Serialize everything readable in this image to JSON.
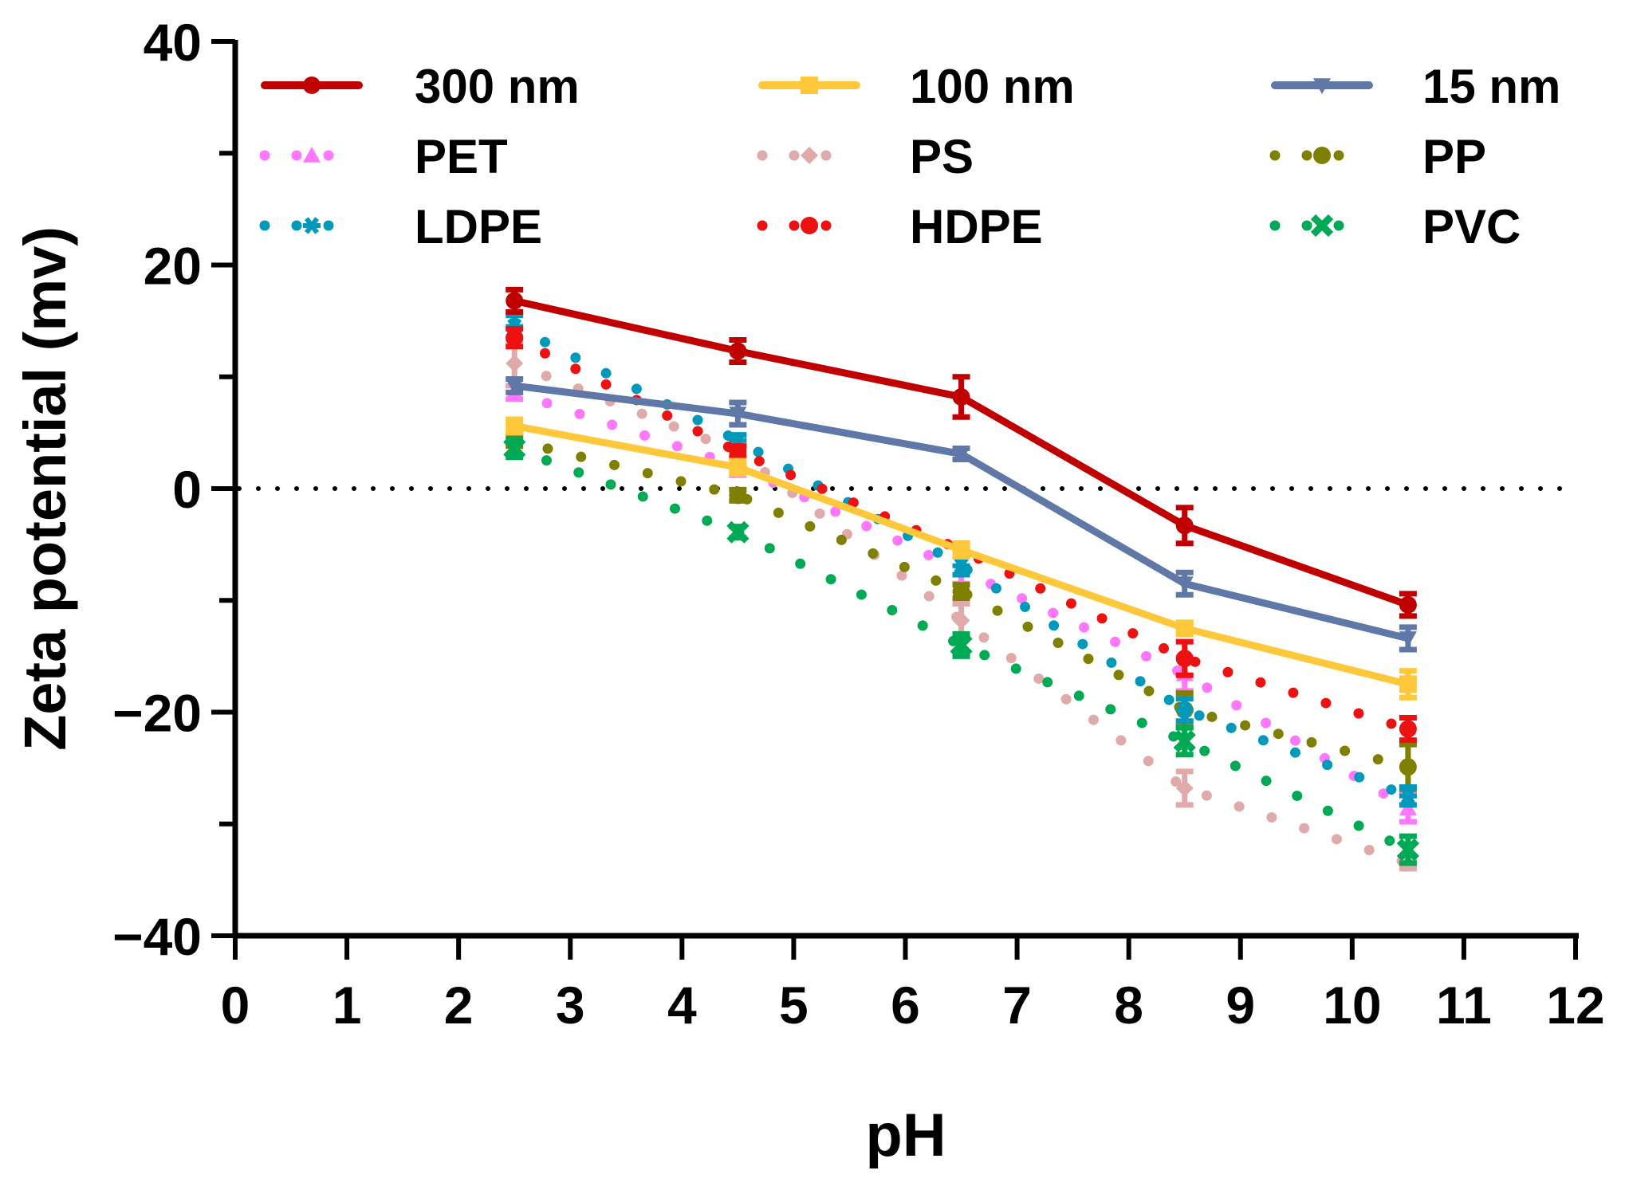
{
  "chart_data": {
    "type": "line",
    "title": "",
    "xlabel": "pH",
    "ylabel": "Zeta potential (mv)",
    "xlim": [
      0,
      12
    ],
    "ylim": [
      -40,
      40
    ],
    "xticks": [
      0,
      1,
      2,
      3,
      4,
      5,
      6,
      7,
      8,
      9,
      10,
      11,
      12
    ],
    "yticks": [
      -40,
      -20,
      0,
      20,
      40
    ],
    "xtick_labels": [
      "0",
      "1",
      "2",
      "3",
      "4",
      "5",
      "6",
      "7",
      "8",
      "9",
      "10",
      "11",
      "12"
    ],
    "ytick_labels": [
      "−40",
      "−20",
      "0",
      "20",
      "40"
    ],
    "reference_line": {
      "y": 0,
      "style": "dotted",
      "color": "#000000"
    },
    "legend_placement": "top",
    "x": [
      2.5,
      4.5,
      6.5,
      8.5,
      10.5
    ],
    "series": [
      {
        "name": "300 nm",
        "style": "solid",
        "marker": "circle",
        "color": "#C00000",
        "values": [
          16.8,
          12.3,
          8.2,
          -3.3,
          -10.4
        ],
        "error": [
          1.0,
          1.0,
          1.8,
          1.6,
          1.0
        ]
      },
      {
        "name": "100 nm",
        "style": "solid",
        "marker": "square",
        "color": "#FFC83A",
        "values": [
          5.6,
          1.9,
          -5.5,
          -12.5,
          -17.5
        ],
        "error": [
          0.6,
          0.6,
          0.6,
          0.5,
          1.2
        ]
      },
      {
        "name": "15 nm",
        "style": "solid",
        "marker": "triangle-down",
        "color": "#6078A8",
        "values": [
          9.2,
          6.7,
          3.1,
          -8.5,
          -13.4
        ],
        "error": [
          0.6,
          1.0,
          0.5,
          1.0,
          1.0
        ]
      },
      {
        "name": "PET",
        "style": "dotted",
        "marker": "triangle",
        "color": "#FF77FF",
        "values": [
          8.6,
          2.0,
          -7.3,
          -16.6,
          -28.6
        ],
        "error": [
          0.6,
          0.8,
          1.2,
          1.5,
          1.2
        ]
      },
      {
        "name": "PS",
        "style": "dotted",
        "marker": "diamond",
        "color": "#E0AAAA",
        "values": [
          11.2,
          3.3,
          -11.8,
          -26.8,
          -33.5
        ],
        "error": [
          2.0,
          0.5,
          1.5,
          1.5,
          0.5
        ]
      },
      {
        "name": "PP",
        "style": "dotted",
        "marker": "hexagon",
        "color": "#808000",
        "values": [
          4.3,
          -0.6,
          -9.2,
          -19.8,
          -24.9
        ],
        "error": [
          0.5,
          0.5,
          0.6,
          1.5,
          2.0
        ]
      },
      {
        "name": "LDPE",
        "style": "dotted",
        "marker": "asterisk",
        "color": "#0099BB",
        "values": [
          14.5,
          4.3,
          -6.9,
          -19.8,
          -27.5
        ],
        "error": [
          1.0,
          0.5,
          0.8,
          1.0,
          0.8
        ]
      },
      {
        "name": "HDPE",
        "style": "dotted",
        "marker": "circle",
        "color": "#EE1111",
        "values": [
          13.5,
          3.3,
          -5.5,
          -15.2,
          -21.5
        ],
        "error": [
          0.8,
          0.5,
          0.6,
          1.5,
          1.0
        ]
      },
      {
        "name": "PVC",
        "style": "dotted",
        "marker": "cross",
        "color": "#00AA55",
        "values": [
          3.6,
          -3.9,
          -14.0,
          -22.6,
          -32.3
        ],
        "error": [
          0.8,
          0.5,
          1.0,
          1.2,
          1.2
        ]
      }
    ]
  }
}
